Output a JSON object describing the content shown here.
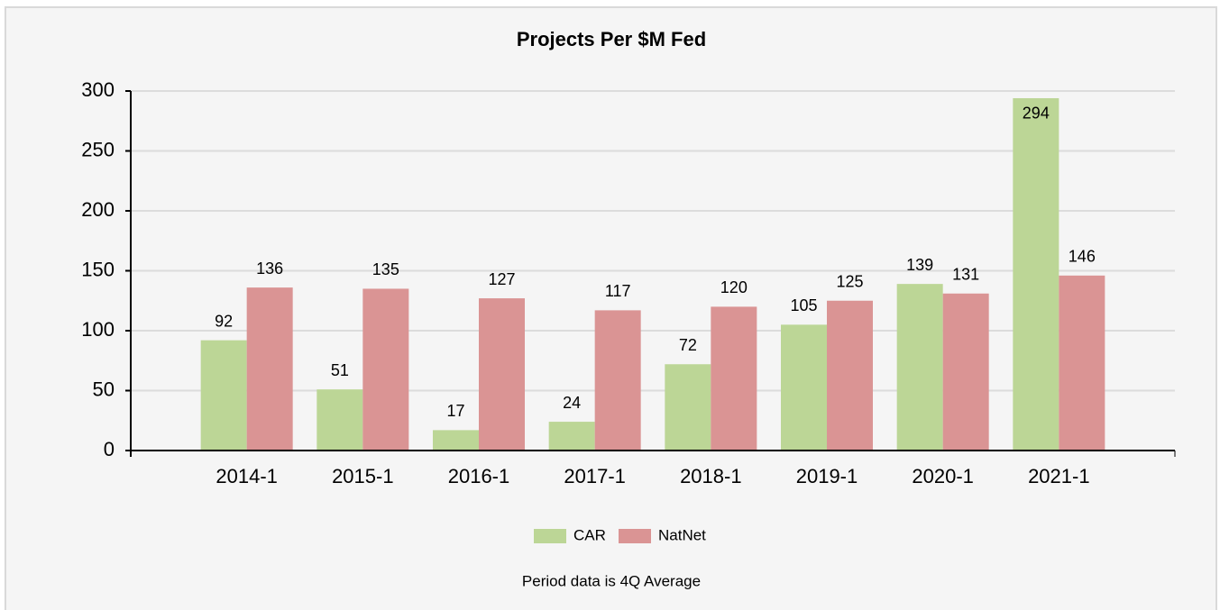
{
  "chart_data": {
    "type": "bar",
    "title": "Projects Per $M Fed",
    "footnote": "Period data is 4Q Average",
    "categories": [
      "2014-1",
      "2015-1",
      "2016-1",
      "2017-1",
      "2018-1",
      "2019-1",
      "2020-1",
      "2021-1"
    ],
    "series": [
      {
        "name": "CAR",
        "color": "#bcd696",
        "values": [
          92,
          51,
          17,
          24,
          72,
          105,
          139,
          294
        ]
      },
      {
        "name": "NatNet",
        "color": "#da9494",
        "values": [
          136,
          135,
          127,
          117,
          120,
          125,
          131,
          146
        ]
      }
    ],
    "ylim": [
      0,
      300
    ],
    "yticks": [
      0,
      50,
      100,
      150,
      200,
      250,
      300
    ],
    "grid": true,
    "legend": "bottom"
  }
}
